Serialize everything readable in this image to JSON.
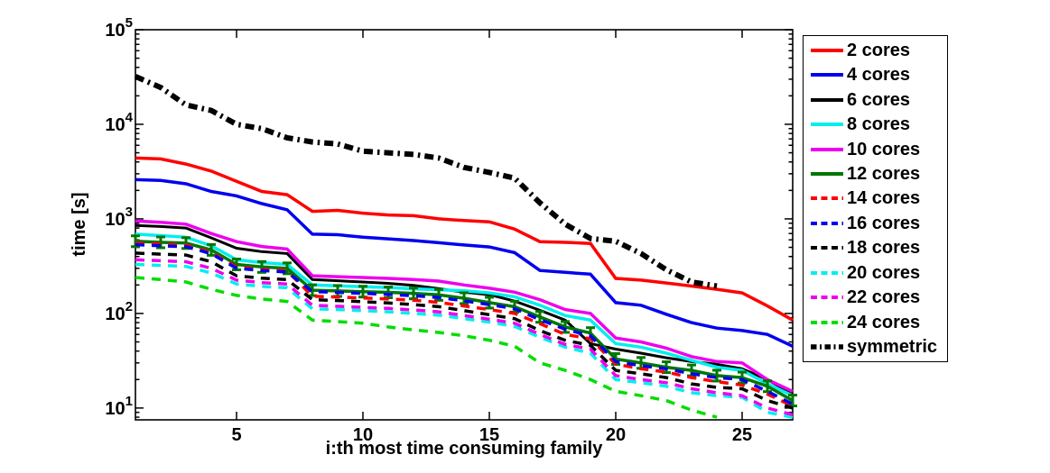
{
  "figure": {
    "background": "#ffffff",
    "axis_color": "#000000"
  },
  "chart_data": {
    "type": "line",
    "title": "",
    "xlabel": "i:th most time consuming family",
    "ylabel": "time [s]",
    "grid": false,
    "legend_position": "right-outside",
    "x_axis": {
      "min": 1,
      "max": 27,
      "ticks": [
        5,
        10,
        15,
        20,
        25
      ]
    },
    "y_axis": {
      "scale": "log",
      "min_log10": 0.875,
      "max_log10": 5,
      "tick_base": "10",
      "tick_exponents": [
        1,
        2,
        3,
        4,
        5
      ]
    },
    "x": [
      1,
      2,
      3,
      4,
      5,
      6,
      7,
      8,
      9,
      10,
      11,
      12,
      13,
      14,
      15,
      16,
      17,
      18,
      19,
      20,
      21,
      22,
      23,
      24,
      25,
      26,
      27
    ],
    "series": [
      {
        "name": "2 cores",
        "color": "#ff0000",
        "style": "solid",
        "width": 3.5,
        "values": [
          4400,
          4300,
          3800,
          3200,
          2500,
          1950,
          1800,
          1200,
          1230,
          1150,
          1100,
          1080,
          1000,
          960,
          930,
          780,
          575,
          565,
          550,
          235,
          225,
          210,
          195,
          180,
          165,
          120,
          85
        ]
      },
      {
        "name": "4 cores",
        "color": "#0000ee",
        "style": "solid",
        "width": 3.5,
        "values": [
          2600,
          2550,
          2350,
          1950,
          1750,
          1450,
          1250,
          690,
          680,
          640,
          615,
          590,
          560,
          530,
          505,
          440,
          285,
          272,
          260,
          130,
          122,
          98,
          80,
          70,
          66,
          60,
          45
        ]
      },
      {
        "name": "6 cores",
        "color": "#000000",
        "style": "solid",
        "width": 3,
        "values": [
          850,
          830,
          800,
          630,
          490,
          450,
          430,
          228,
          222,
          215,
          208,
          198,
          183,
          168,
          158,
          135,
          108,
          85,
          48,
          42,
          38,
          34,
          31,
          29,
          26,
          20,
          14
        ]
      },
      {
        "name": "8 cores",
        "color": "#00eeee",
        "style": "solid",
        "width": 3.5,
        "values": [
          690,
          665,
          640,
          520,
          370,
          345,
          330,
          200,
          196,
          192,
          188,
          182,
          178,
          174,
          165,
          150,
          122,
          95,
          85,
          48,
          44,
          38,
          32,
          27,
          25,
          18,
          13.5
        ]
      },
      {
        "name": "10 cores",
        "color": "#ee00ee",
        "style": "solid",
        "width": 3.5,
        "values": [
          950,
          920,
          880,
          700,
          575,
          510,
          480,
          250,
          245,
          240,
          235,
          228,
          220,
          200,
          185,
          168,
          140,
          110,
          100,
          55,
          50,
          43,
          35,
          31,
          30,
          20,
          15
        ]
      },
      {
        "name": "12 cores",
        "color": "#007700",
        "style": "solid",
        "width": 3.5,
        "errorbars": true,
        "values": [
          580,
          565,
          555,
          470,
          330,
          310,
          300,
          176,
          173,
          170,
          167,
          163,
          157,
          145,
          130,
          118,
          92,
          72,
          62,
          33,
          30,
          27,
          25,
          22,
          21,
          17,
          12
        ]
      },
      {
        "name": "14 cores",
        "color": "#ff0000",
        "style": "dashed",
        "width": 3.5,
        "values": [
          555,
          540,
          525,
          440,
          310,
          292,
          282,
          152,
          149,
          146,
          142,
          138,
          131,
          120,
          110,
          100,
          78,
          60,
          54,
          29,
          26,
          24,
          21,
          19,
          17.5,
          14,
          10.5
        ]
      },
      {
        "name": "16 cores",
        "color": "#0000ee",
        "style": "dashed",
        "width": 3.5,
        "values": [
          535,
          520,
          508,
          428,
          300,
          284,
          274,
          170,
          167,
          163,
          159,
          154,
          147,
          136,
          124,
          112,
          86,
          68,
          58,
          31,
          28,
          26,
          23,
          21,
          20,
          15,
          11
        ]
      },
      {
        "name": "18 cores",
        "color": "#000000",
        "style": "dashed",
        "width": 3.5,
        "values": [
          435,
          424,
          414,
          352,
          250,
          236,
          228,
          140,
          137,
          133,
          129,
          124,
          118,
          107,
          97,
          88,
          66,
          52,
          46,
          25,
          23,
          21,
          18,
          16.5,
          16,
          12,
          10
        ]
      },
      {
        "name": "20 cores",
        "color": "#00eeee",
        "style": "dashed",
        "width": 3.5,
        "values": [
          330,
          322,
          314,
          268,
          205,
          193,
          187,
          112,
          110,
          107,
          104,
          100,
          96,
          88,
          81,
          73,
          56,
          44,
          38,
          20,
          18.5,
          17,
          14.5,
          13.5,
          13,
          9,
          8
        ]
      },
      {
        "name": "22 cores",
        "color": "#ee00ee",
        "style": "dashed",
        "width": 3.5,
        "values": [
          370,
          361,
          352,
          300,
          225,
          212,
          205,
          122,
          119,
          116,
          113,
          109,
          104,
          95,
          87,
          79,
          60,
          47,
          42,
          22,
          20,
          18.5,
          16,
          14.5,
          13.5,
          10,
          8.5
        ]
      },
      {
        "name": "24 cores",
        "color": "#00dd00",
        "style": "dashed",
        "width": 3.5,
        "values": [
          240,
          228,
          215,
          180,
          155,
          142,
          134,
          85,
          82,
          79,
          72,
          67,
          63,
          58,
          52,
          45,
          30,
          25,
          20,
          15,
          13.5,
          12,
          9.5,
          8,
          null,
          null,
          null
        ]
      },
      {
        "name": "symmetric",
        "color": "#000000",
        "style": "dashdot",
        "width": 6,
        "values": [
          32000,
          24500,
          16000,
          14000,
          10000,
          9000,
          7200,
          6500,
          6200,
          5200,
          5000,
          4800,
          4400,
          3500,
          3100,
          2700,
          1480,
          880,
          620,
          580,
          430,
          290,
          215,
          195,
          null,
          null,
          null
        ]
      }
    ]
  }
}
